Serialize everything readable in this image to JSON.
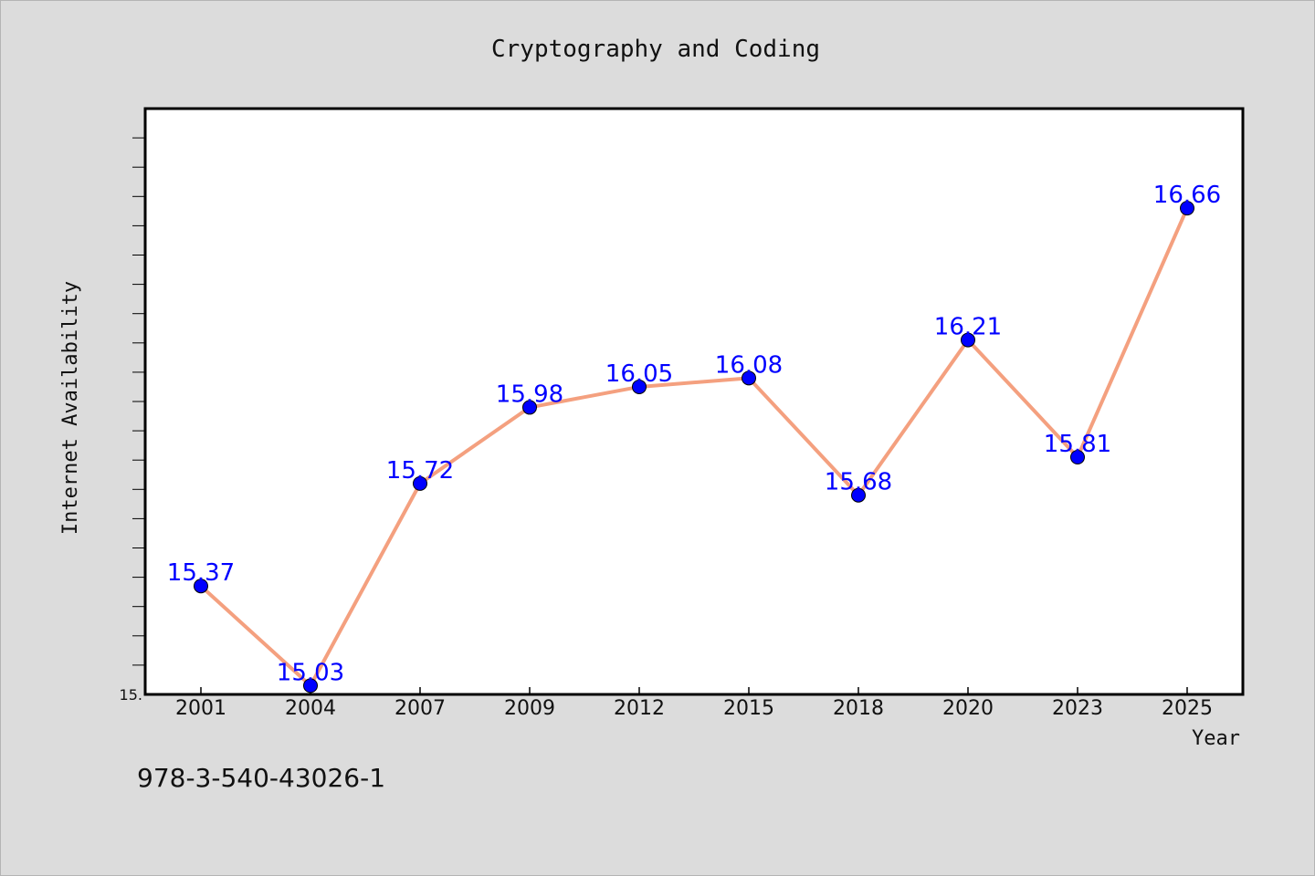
{
  "chart_data": {
    "type": "line",
    "title": "Cryptography and Coding",
    "xlabel": "Year",
    "ylabel": "Internet Availability",
    "categories": [
      "2001",
      "2004",
      "2007",
      "2009",
      "2012",
      "2015",
      "2018",
      "2020",
      "2023",
      "2025"
    ],
    "series": [
      {
        "values": [
          15.37,
          15.03,
          15.72,
          15.98,
          16.05,
          16.08,
          15.68,
          16.21,
          15.81,
          16.66
        ],
        "labels": [
          "15.37",
          "15.03",
          "15.72",
          "15.98",
          "16.05",
          "16.08",
          "15.68",
          "16.21",
          "15.81",
          "16.66"
        ]
      }
    ],
    "ylim": [
      15.0,
      17.0
    ],
    "ytick_labels": [
      "15."
    ],
    "grid": false,
    "line_color": "#f4a07f",
    "marker_color": "#0000ff",
    "label_color": "#0000ff"
  },
  "footer": {
    "isbn": "978-3-540-43026-1"
  }
}
